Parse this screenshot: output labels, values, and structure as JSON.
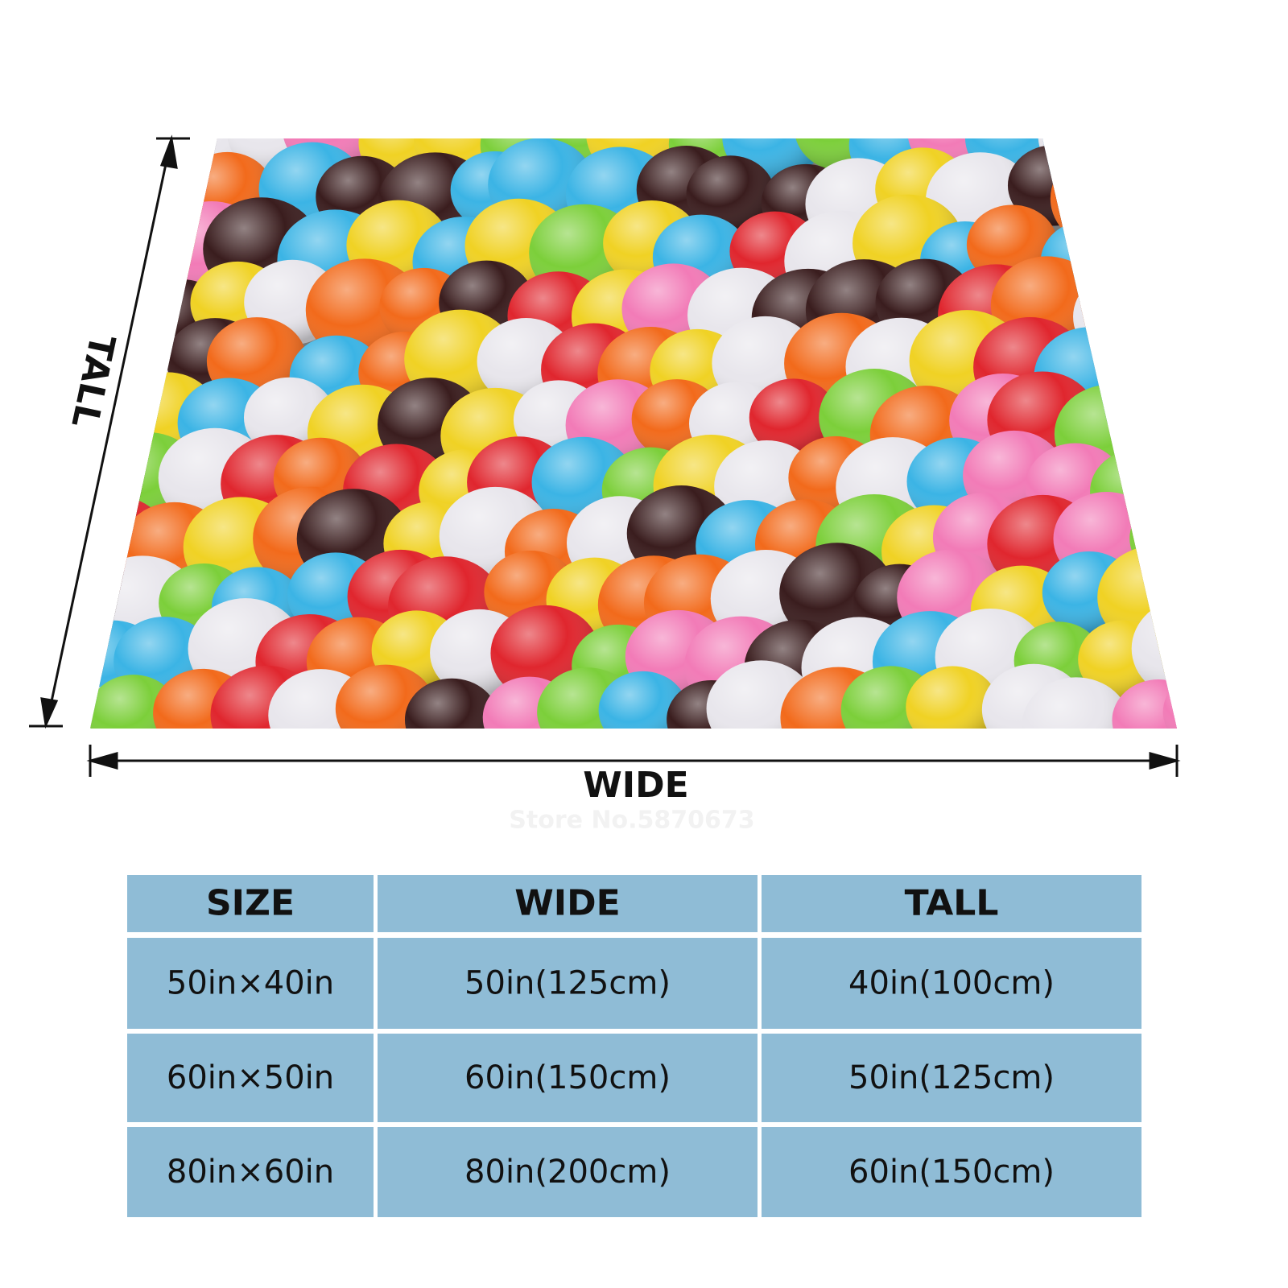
{
  "labels": {
    "tall": "TALL",
    "wide": "WIDE",
    "watermark": "Store No.5870673"
  },
  "table": {
    "header": [
      "SIZE",
      "WIDE",
      "TALL"
    ],
    "rows": [
      [
        "50in×40in",
        "50in(125cm)",
        "40in(100cm)"
      ],
      [
        "60in×50in",
        "60in(150cm)",
        "50in(125cm)"
      ],
      [
        "80in×60in",
        "80in(200cm)",
        "60in(150cm)"
      ]
    ]
  }
}
